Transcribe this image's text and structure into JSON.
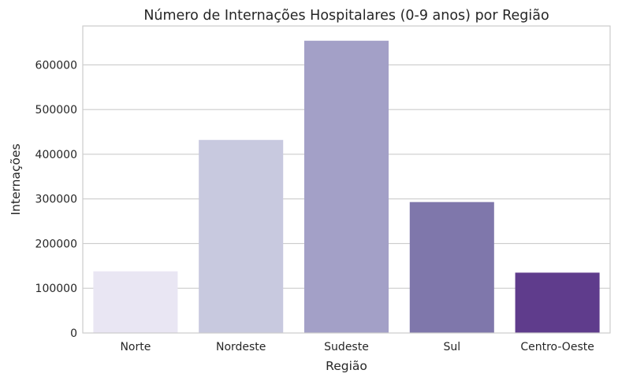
{
  "chart_data": {
    "type": "bar",
    "title": "Número de Internações Hospitalares (0-9 anos) por Região",
    "xlabel": "Região",
    "ylabel": "Internações",
    "categories": [
      "Norte",
      "Nordeste",
      "Sudeste",
      "Sul",
      "Centro-Oeste"
    ],
    "values": [
      138000,
      432000,
      654000,
      293000,
      135000
    ],
    "colors": [
      "#e9e6f3",
      "#c8c9df",
      "#a3a0c7",
      "#7f77ab",
      "#5f3c8c"
    ],
    "ylim": [
      0,
      687000
    ],
    "yticks": [
      0,
      100000,
      200000,
      300000,
      400000,
      500000,
      600000
    ],
    "ytick_labels": [
      "0",
      "100000",
      "200000",
      "300000",
      "400000",
      "500000",
      "600000"
    ],
    "grid": true,
    "grid_axis": "y"
  }
}
